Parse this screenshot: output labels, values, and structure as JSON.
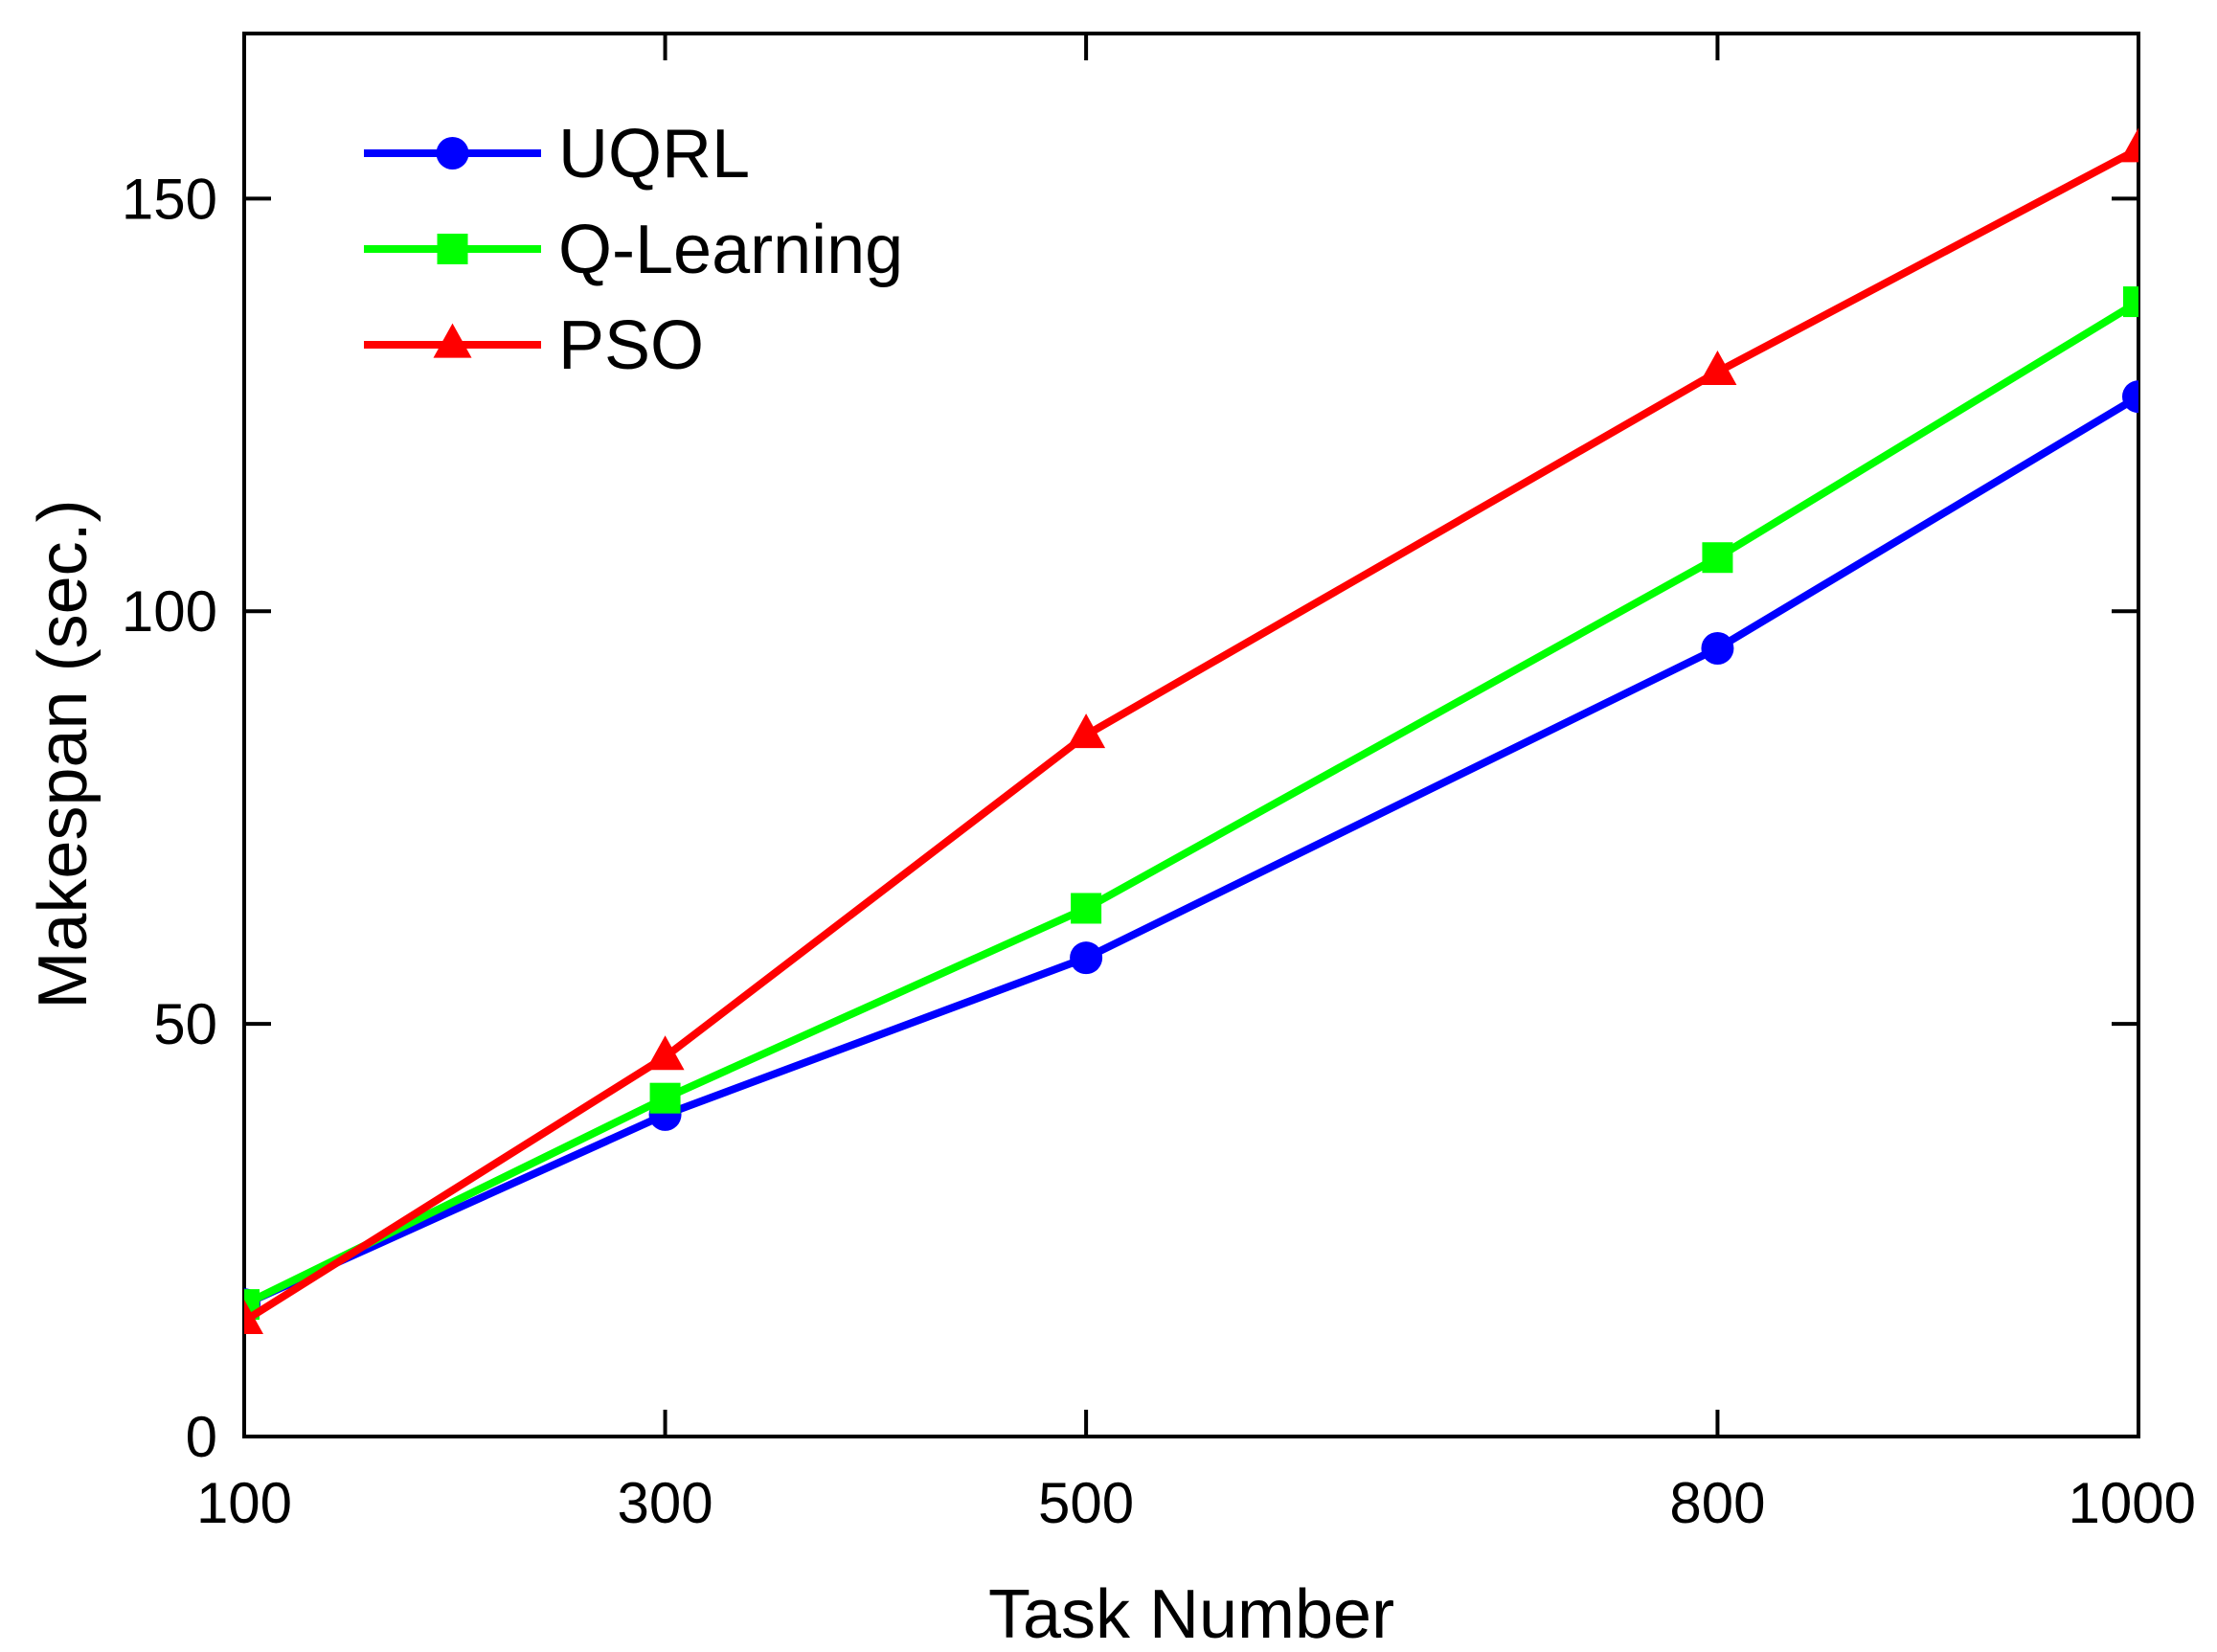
{
  "chart_data": {
    "type": "line",
    "title": "",
    "xlabel": "Task Number",
    "ylabel": "Makespan (sec.)",
    "x": [
      100,
      300,
      500,
      800,
      1000
    ],
    "xticks": [
      "100",
      "300",
      "500",
      "800",
      "1000"
    ],
    "xlim": [
      100,
      1000
    ],
    "yticks": [
      "0",
      "50",
      "100",
      "150"
    ],
    "ylim": [
      0,
      170
    ],
    "grid": false,
    "legend_position": "top-left",
    "series": [
      {
        "name": "UQRL",
        "values": [
          16,
          39,
          58,
          95.5,
          126
        ],
        "color": "#0000ff",
        "marker": "circle"
      },
      {
        "name": "Q-Learning",
        "values": [
          16,
          41,
          64,
          106.5,
          137.5
        ],
        "color": "#00ff00",
        "marker": "square"
      },
      {
        "name": "PSO",
        "values": [
          14,
          46,
          85,
          129,
          156
        ],
        "color": "#ff0000",
        "marker": "triangle"
      }
    ]
  }
}
